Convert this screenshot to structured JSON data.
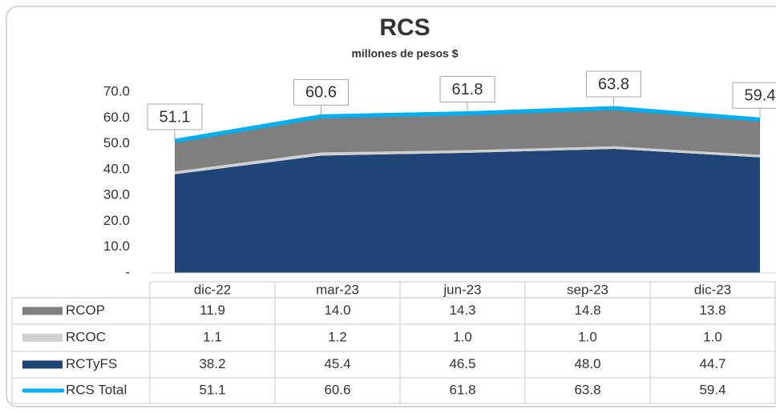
{
  "chart_data": {
    "type": "area",
    "title": "RCS",
    "subtitle": "millones de pesos $",
    "categories": [
      "dic-22",
      "mar-23",
      "jun-23",
      "sep-23",
      "dic-23"
    ],
    "ylim": [
      0,
      70
    ],
    "yticks": [
      {
        "value": 70,
        "label": "70.0"
      },
      {
        "value": 60,
        "label": "60.0"
      },
      {
        "value": 50,
        "label": "50.0"
      },
      {
        "value": 40,
        "label": "40.0"
      },
      {
        "value": 30,
        "label": "30.0"
      },
      {
        "value": 20,
        "label": "20.0"
      },
      {
        "value": 10,
        "label": "10.0"
      },
      {
        "value": 0,
        "label": "-"
      }
    ],
    "series": [
      {
        "name": "RCOP",
        "type": "area",
        "color": "#7f7f7f",
        "values": [
          11.9,
          14.0,
          14.3,
          14.8,
          13.8
        ],
        "value_labels": [
          "11.9",
          "14.0",
          "14.3",
          "14.8",
          "13.8"
        ]
      },
      {
        "name": "RCOC",
        "type": "area",
        "color": "#d0d0d0",
        "values": [
          1.1,
          1.2,
          1.0,
          1.0,
          1.0
        ],
        "value_labels": [
          "1.1",
          "1.2",
          "1.0",
          "1.0",
          "1.0"
        ]
      },
      {
        "name": "RCTyFS",
        "type": "area",
        "color": "#1f4478",
        "values": [
          38.2,
          45.4,
          46.5,
          48.0,
          44.7
        ],
        "value_labels": [
          "38.2",
          "45.4",
          "46.5",
          "48.0",
          "44.7"
        ]
      },
      {
        "name": "RCS Total",
        "type": "line",
        "color": "#00b0f0",
        "values": [
          51.1,
          60.6,
          61.8,
          63.8,
          59.4
        ],
        "value_labels": [
          "51.1",
          "60.6",
          "61.8",
          "63.8",
          "59.4"
        ]
      }
    ]
  }
}
